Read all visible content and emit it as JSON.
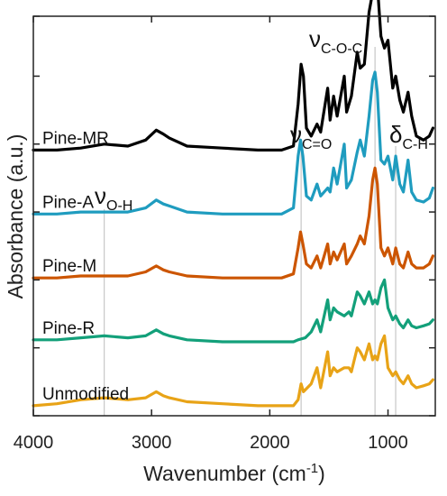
{
  "chart_data": {
    "type": "line",
    "title": "",
    "xlabel": "Wavenumber (cm",
    "xlabel_sup": "-1",
    "xlabel_suffix": ")",
    "ylabel": "Absorbance (a.u.)",
    "x_reversed": true,
    "xlim": [
      4000,
      600
    ],
    "ylim": [
      0,
      10
    ],
    "x_ticks": [
      4000,
      3000,
      2000,
      1000
    ],
    "x_tick_labels": [
      "4000",
      "3000",
      "2000",
      "1000"
    ],
    "y_ticks_unlabeled": [
      0,
      1.7,
      3.4,
      5.1,
      6.8,
      8.5,
      10
    ],
    "y_tick_labels_visible": false,
    "grid": false,
    "legend": "inline labels at left",
    "annotations": [
      {
        "symbol": "ν",
        "sub": "O-H",
        "x": 3400
      },
      {
        "symbol": "ν",
        "sub": "C=O",
        "x": 1735
      },
      {
        "symbol": "ν",
        "sub": "C-O-C",
        "x": 1110
      },
      {
        "symbol": "δ",
        "sub": "C-H",
        "x": 935
      }
    ],
    "series": [
      {
        "name": "Pine-MR",
        "color": "#000000",
        "offset": 6.6,
        "points": [
          [
            4000,
            0.05
          ],
          [
            3800,
            0.05
          ],
          [
            3600,
            0.1
          ],
          [
            3400,
            0.2
          ],
          [
            3200,
            0.15
          ],
          [
            3050,
            0.3
          ],
          [
            2960,
            0.55
          ],
          [
            2900,
            0.45
          ],
          [
            2850,
            0.35
          ],
          [
            2700,
            0.15
          ],
          [
            2400,
            0.1
          ],
          [
            2100,
            0.05
          ],
          [
            1900,
            0.05
          ],
          [
            1800,
            0.15
          ],
          [
            1760,
            1.2
          ],
          [
            1735,
            2.2
          ],
          [
            1715,
            1.9
          ],
          [
            1690,
            0.6
          ],
          [
            1650,
            0.4
          ],
          [
            1600,
            0.7
          ],
          [
            1570,
            0.5
          ],
          [
            1510,
            1.6
          ],
          [
            1490,
            0.8
          ],
          [
            1460,
            1.4
          ],
          [
            1430,
            0.9
          ],
          [
            1370,
            1.9
          ],
          [
            1350,
            1.0
          ],
          [
            1310,
            1.4
          ],
          [
            1260,
            2.5
          ],
          [
            1235,
            2.1
          ],
          [
            1200,
            2.2
          ],
          [
            1160,
            3.5
          ],
          [
            1130,
            4.0
          ],
          [
            1110,
            4.6
          ],
          [
            1090,
            4.2
          ],
          [
            1060,
            2.9
          ],
          [
            1030,
            2.6
          ],
          [
            1000,
            2.8
          ],
          [
            960,
            1.6
          ],
          [
            935,
            1.9
          ],
          [
            900,
            1.3
          ],
          [
            870,
            1.0
          ],
          [
            830,
            1.5
          ],
          [
            800,
            0.9
          ],
          [
            760,
            0.4
          ],
          [
            700,
            0.3
          ],
          [
            650,
            0.4
          ],
          [
            620,
            0.6
          ]
        ]
      },
      {
        "name": "Pine-A",
        "color": "#1f9cbf",
        "offset": 5.0,
        "points": [
          [
            4000,
            0.05
          ],
          [
            3800,
            0.05
          ],
          [
            3600,
            0.1
          ],
          [
            3400,
            0.1
          ],
          [
            3200,
            0.1
          ],
          [
            3050,
            0.2
          ],
          [
            2960,
            0.4
          ],
          [
            2900,
            0.3
          ],
          [
            2850,
            0.25
          ],
          [
            2700,
            0.1
          ],
          [
            2400,
            0.05
          ],
          [
            2100,
            0.05
          ],
          [
            1900,
            0.05
          ],
          [
            1800,
            0.2
          ],
          [
            1760,
            1.5
          ],
          [
            1740,
            1.9
          ],
          [
            1720,
            1.5
          ],
          [
            1690,
            0.5
          ],
          [
            1650,
            0.4
          ],
          [
            1600,
            0.8
          ],
          [
            1570,
            0.5
          ],
          [
            1510,
            0.7
          ],
          [
            1490,
            0.6
          ],
          [
            1460,
            1.2
          ],
          [
            1430,
            0.8
          ],
          [
            1370,
            1.8
          ],
          [
            1350,
            0.7
          ],
          [
            1310,
            0.9
          ],
          [
            1260,
            1.6
          ],
          [
            1235,
            1.9
          ],
          [
            1200,
            1.5
          ],
          [
            1160,
            2.5
          ],
          [
            1130,
            3.4
          ],
          [
            1110,
            3.6
          ],
          [
            1090,
            3.1
          ],
          [
            1060,
            1.4
          ],
          [
            1030,
            1.3
          ],
          [
            1000,
            1.5
          ],
          [
            960,
            0.9
          ],
          [
            935,
            1.5
          ],
          [
            900,
            0.8
          ],
          [
            870,
            0.6
          ],
          [
            830,
            1.4
          ],
          [
            800,
            0.6
          ],
          [
            760,
            0.4
          ],
          [
            700,
            0.35
          ],
          [
            650,
            0.45
          ],
          [
            620,
            0.7
          ]
        ]
      },
      {
        "name": "Pine-M",
        "color": "#cc5500",
        "offset": 3.4,
        "points": [
          [
            4000,
            0.05
          ],
          [
            3800,
            0.05
          ],
          [
            3600,
            0.1
          ],
          [
            3400,
            0.1
          ],
          [
            3200,
            0.1
          ],
          [
            3050,
            0.2
          ],
          [
            2960,
            0.35
          ],
          [
            2900,
            0.25
          ],
          [
            2850,
            0.2
          ],
          [
            2700,
            0.1
          ],
          [
            2400,
            0.05
          ],
          [
            2100,
            0.05
          ],
          [
            1900,
            0.05
          ],
          [
            1800,
            0.15
          ],
          [
            1760,
            0.8
          ],
          [
            1740,
            1.2
          ],
          [
            1720,
            0.9
          ],
          [
            1690,
            0.4
          ],
          [
            1650,
            0.3
          ],
          [
            1600,
            0.6
          ],
          [
            1570,
            0.3
          ],
          [
            1510,
            0.9
          ],
          [
            1490,
            0.4
          ],
          [
            1460,
            0.7
          ],
          [
            1430,
            0.5
          ],
          [
            1370,
            0.9
          ],
          [
            1350,
            0.4
          ],
          [
            1310,
            0.6
          ],
          [
            1260,
            0.9
          ],
          [
            1235,
            1.1
          ],
          [
            1200,
            0.9
          ],
          [
            1160,
            1.6
          ],
          [
            1130,
            2.5
          ],
          [
            1110,
            2.8
          ],
          [
            1090,
            2.4
          ],
          [
            1060,
            0.8
          ],
          [
            1030,
            0.6
          ],
          [
            1000,
            0.8
          ],
          [
            960,
            0.4
          ],
          [
            935,
            0.8
          ],
          [
            900,
            0.4
          ],
          [
            870,
            0.3
          ],
          [
            830,
            0.7
          ],
          [
            800,
            0.4
          ],
          [
            760,
            0.3
          ],
          [
            700,
            0.3
          ],
          [
            650,
            0.4
          ],
          [
            620,
            0.6
          ]
        ]
      },
      {
        "name": "Pine-R",
        "color": "#13a07a",
        "offset": 1.8,
        "points": [
          [
            4000,
            0.1
          ],
          [
            3800,
            0.1
          ],
          [
            3600,
            0.15
          ],
          [
            3400,
            0.2
          ],
          [
            3200,
            0.15
          ],
          [
            3050,
            0.2
          ],
          [
            2960,
            0.35
          ],
          [
            2900,
            0.25
          ],
          [
            2850,
            0.2
          ],
          [
            2700,
            0.1
          ],
          [
            2400,
            0.05
          ],
          [
            2100,
            0.05
          ],
          [
            1900,
            0.05
          ],
          [
            1800,
            0.05
          ],
          [
            1760,
            0.1
          ],
          [
            1700,
            0.15
          ],
          [
            1650,
            0.3
          ],
          [
            1600,
            0.6
          ],
          [
            1570,
            0.3
          ],
          [
            1510,
            1.1
          ],
          [
            1490,
            0.6
          ],
          [
            1460,
            0.9
          ],
          [
            1430,
            0.8
          ],
          [
            1370,
            0.7
          ],
          [
            1330,
            0.8
          ],
          [
            1310,
            0.7
          ],
          [
            1260,
            1.3
          ],
          [
            1235,
            1.2
          ],
          [
            1200,
            1.0
          ],
          [
            1160,
            1.3
          ],
          [
            1130,
            1.0
          ],
          [
            1110,
            1.1
          ],
          [
            1090,
            1.0
          ],
          [
            1060,
            1.4
          ],
          [
            1030,
            1.6
          ],
          [
            1000,
            0.9
          ],
          [
            960,
            0.6
          ],
          [
            935,
            0.7
          ],
          [
            900,
            0.5
          ],
          [
            870,
            0.4
          ],
          [
            830,
            0.6
          ],
          [
            800,
            0.45
          ],
          [
            760,
            0.4
          ],
          [
            700,
            0.45
          ],
          [
            650,
            0.5
          ],
          [
            620,
            0.6
          ]
        ]
      },
      {
        "name": "Unmodified",
        "color": "#e8a317",
        "offset": 0.2,
        "points": [
          [
            4000,
            0.05
          ],
          [
            3800,
            0.1
          ],
          [
            3600,
            0.2
          ],
          [
            3400,
            0.25
          ],
          [
            3200,
            0.2
          ],
          [
            3050,
            0.25
          ],
          [
            2960,
            0.4
          ],
          [
            2900,
            0.3
          ],
          [
            2850,
            0.25
          ],
          [
            2700,
            0.15
          ],
          [
            2400,
            0.1
          ],
          [
            2100,
            0.05
          ],
          [
            1900,
            0.05
          ],
          [
            1800,
            0.05
          ],
          [
            1760,
            0.2
          ],
          [
            1735,
            0.6
          ],
          [
            1715,
            0.4
          ],
          [
            1650,
            0.6
          ],
          [
            1600,
            1.0
          ],
          [
            1570,
            0.5
          ],
          [
            1510,
            1.4
          ],
          [
            1490,
            0.8
          ],
          [
            1460,
            1.0
          ],
          [
            1430,
            0.9
          ],
          [
            1370,
            1.0
          ],
          [
            1330,
            1.0
          ],
          [
            1310,
            0.9
          ],
          [
            1260,
            1.5
          ],
          [
            1235,
            1.4
          ],
          [
            1200,
            1.2
          ],
          [
            1160,
            1.6
          ],
          [
            1130,
            1.2
          ],
          [
            1110,
            1.3
          ],
          [
            1090,
            1.2
          ],
          [
            1060,
            1.6
          ],
          [
            1030,
            1.8
          ],
          [
            1000,
            1.0
          ],
          [
            960,
            0.8
          ],
          [
            935,
            0.9
          ],
          [
            900,
            0.7
          ],
          [
            870,
            0.6
          ],
          [
            830,
            0.8
          ],
          [
            800,
            0.6
          ],
          [
            760,
            0.5
          ],
          [
            700,
            0.55
          ],
          [
            650,
            0.6
          ],
          [
            620,
            0.7
          ]
        ]
      }
    ]
  }
}
